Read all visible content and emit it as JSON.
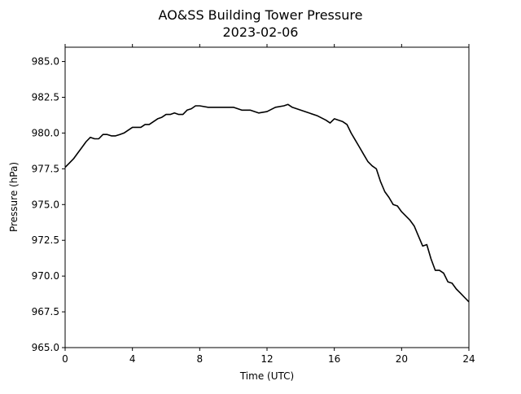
{
  "chart_data": {
    "type": "line",
    "title": "AO&SS Building Tower Pressure",
    "subtitle": "2023-02-06",
    "xlabel": "Time (UTC)",
    "ylabel": "Pressure (hPa)",
    "xlim": [
      0,
      24
    ],
    "ylim": [
      965.0,
      986.0
    ],
    "x_ticks": [
      0,
      4,
      8,
      12,
      16,
      20,
      24
    ],
    "x_tick_labels": [
      "0",
      "4",
      "8",
      "12",
      "16",
      "20",
      "24"
    ],
    "y_ticks": [
      965.0,
      967.5,
      970.0,
      972.5,
      975.0,
      977.5,
      980.0,
      982.5,
      985.0
    ],
    "y_tick_labels": [
      "965.0",
      "967.5",
      "970.0",
      "972.5",
      "975.0",
      "977.5",
      "980.0",
      "982.5",
      "985.0"
    ],
    "grid": false,
    "line_color": "#000000",
    "series": [
      {
        "x": [
          0,
          0.25,
          0.5,
          0.75,
          1.0,
          1.25,
          1.5,
          1.75,
          2.0,
          2.25,
          2.5,
          2.75,
          3.0,
          3.25,
          3.5,
          3.75,
          4.0,
          4.25,
          4.5,
          4.75,
          5.0,
          5.25,
          5.5,
          5.75,
          6.0,
          6.25,
          6.5,
          6.75,
          7.0,
          7.25,
          7.5,
          7.75,
          8.0,
          8.5,
          9.0,
          9.5,
          10.0,
          10.5,
          11.0,
          11.5,
          12.0,
          12.5,
          13.0,
          13.25,
          13.5,
          14.0,
          14.5,
          15.0,
          15.5,
          15.75,
          16.0,
          16.25,
          16.5,
          16.75,
          17.0,
          17.25,
          17.5,
          17.75,
          18.0,
          18.25,
          18.5,
          18.75,
          19.0,
          19.25,
          19.5,
          19.75,
          20.0,
          20.25,
          20.5,
          20.75,
          21.0,
          21.25,
          21.5,
          21.75,
          22.0,
          22.25,
          22.5,
          22.75,
          23.0,
          23.25,
          23.5,
          23.75,
          24.0
        ],
        "y": [
          977.6,
          977.9,
          978.2,
          978.6,
          979.0,
          979.4,
          979.7,
          979.6,
          979.6,
          979.9,
          979.9,
          979.8,
          979.8,
          979.9,
          980.0,
          980.2,
          980.4,
          980.4,
          980.4,
          980.6,
          980.6,
          980.8,
          981.0,
          981.1,
          981.3,
          981.3,
          981.4,
          981.3,
          981.3,
          981.6,
          981.7,
          981.9,
          981.9,
          981.8,
          981.8,
          981.8,
          981.8,
          981.6,
          981.6,
          981.4,
          981.5,
          981.8,
          981.9,
          982.0,
          981.8,
          981.6,
          981.4,
          981.2,
          980.9,
          980.7,
          981.0,
          980.9,
          980.8,
          980.6,
          980.0,
          979.5,
          979.0,
          978.5,
          978.0,
          977.7,
          977.5,
          976.6,
          975.9,
          975.5,
          975.0,
          974.9,
          974.5,
          974.2,
          973.9,
          973.5,
          972.8,
          972.1,
          972.2,
          971.2,
          970.4,
          970.4,
          970.2,
          969.6,
          969.5,
          969.1,
          968.8,
          968.5,
          968.2
        ]
      }
    ]
  }
}
